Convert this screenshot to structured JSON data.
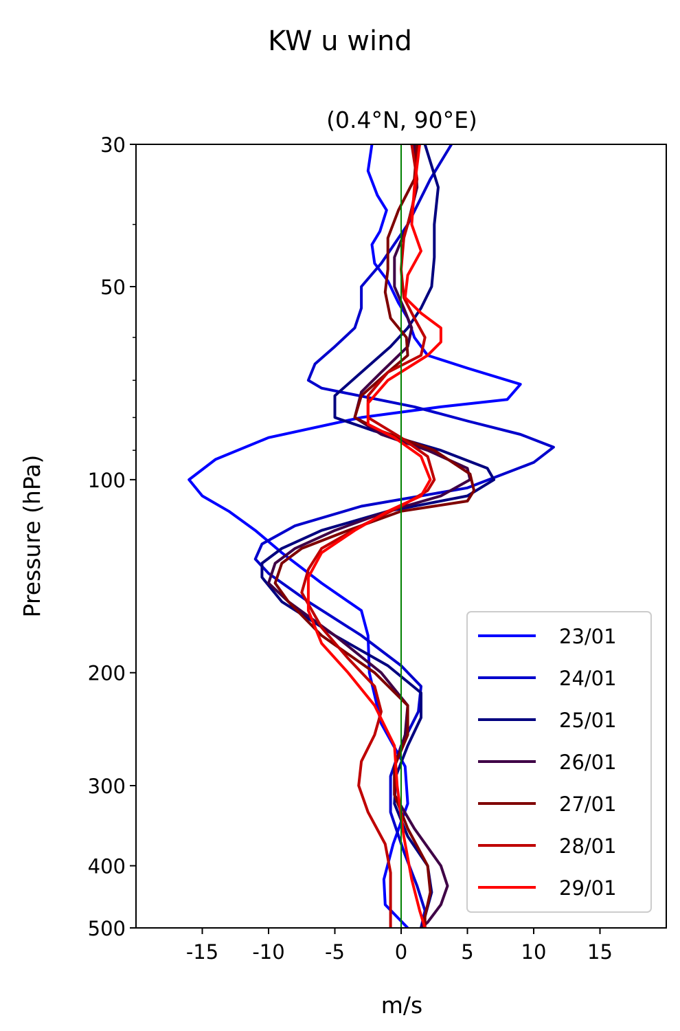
{
  "chart_data": {
    "type": "line",
    "title": "KW u wind",
    "subtitle": "(0.4°N, 90°E)",
    "xlabel": "m/s",
    "ylabel": "Pressure (hPa)",
    "xlim": [
      -20,
      20
    ],
    "ylim": [
      500,
      30
    ],
    "y_scale": "log",
    "y_inverted": true,
    "grid": false,
    "legend_position": "lower-right",
    "x_ticks": [
      -15,
      -10,
      -5,
      0,
      5,
      10,
      15
    ],
    "x_tick_labels": [
      "-15",
      "-10",
      "-5",
      "0",
      "5",
      "10",
      "15"
    ],
    "y_ticks": [
      30,
      50,
      100,
      200,
      300,
      400,
      500
    ],
    "y_tick_labels": [
      "30",
      "50",
      "100",
      "200",
      "300",
      "400",
      "500"
    ],
    "y_minor_ticks": [
      40,
      60,
      70,
      80,
      90
    ],
    "reference_line": {
      "x": 0,
      "color": "#008000"
    },
    "series": [
      {
        "name": "23/01",
        "color": "#0000ff",
        "points": [
          [
            -2.2,
            30
          ],
          [
            -2.5,
            33
          ],
          [
            -1.8,
            36
          ],
          [
            -1.1,
            38
          ],
          [
            -1.6,
            41
          ],
          [
            -2.2,
            43
          ],
          [
            -2.0,
            46
          ],
          [
            -1.0,
            49
          ],
          [
            -0.2,
            53
          ],
          [
            0.5,
            56
          ],
          [
            1.0,
            60
          ],
          [
            2.0,
            64
          ],
          [
            5,
            67
          ],
          [
            9,
            71
          ],
          [
            8,
            75
          ],
          [
            3,
            77
          ],
          [
            -3,
            80
          ],
          [
            -10,
            86
          ],
          [
            -14,
            93
          ],
          [
            -16,
            100
          ],
          [
            -15,
            106
          ],
          [
            -13,
            112
          ],
          [
            -11,
            120
          ],
          [
            -9,
            130
          ],
          [
            -6,
            145
          ],
          [
            -3,
            160
          ],
          [
            -2.5,
            175
          ],
          [
            -2.4,
            200
          ],
          [
            -1.5,
            240
          ],
          [
            0.3,
            280
          ],
          [
            0.5,
            320
          ],
          [
            -0.6,
            370
          ],
          [
            -1.3,
            420
          ],
          [
            -1.2,
            460
          ],
          [
            0.5,
            500
          ]
        ]
      },
      {
        "name": "24/01",
        "color": "#0000cc",
        "points": [
          [
            3.8,
            30
          ],
          [
            2.2,
            34
          ],
          [
            0.5,
            40
          ],
          [
            -1.5,
            46
          ],
          [
            -3,
            50
          ],
          [
            -3,
            54
          ],
          [
            -3.5,
            58
          ],
          [
            -5,
            62
          ],
          [
            -6.5,
            66
          ],
          [
            -7,
            70
          ],
          [
            -6,
            72
          ],
          [
            1,
            77
          ],
          [
            5,
            81
          ],
          [
            9,
            85
          ],
          [
            11.5,
            89
          ],
          [
            10,
            94
          ],
          [
            5,
            103
          ],
          [
            -3,
            110
          ],
          [
            -8,
            118
          ],
          [
            -10.5,
            126
          ],
          [
            -11,
            133
          ],
          [
            -10,
            140
          ],
          [
            -7,
            155
          ],
          [
            -3,
            175
          ],
          [
            0,
            195
          ],
          [
            1.5,
            210
          ],
          [
            1.3,
            230
          ],
          [
            0,
            260
          ],
          [
            -0.8,
            290
          ],
          [
            -0.8,
            330
          ],
          [
            0.2,
            380
          ],
          [
            1.2,
            430
          ],
          [
            1.8,
            470
          ],
          [
            1.5,
            500
          ]
        ]
      },
      {
        "name": "25/01",
        "color": "#00007f",
        "points": [
          [
            1.8,
            30
          ],
          [
            2.8,
            35
          ],
          [
            2.5,
            40
          ],
          [
            2.5,
            45
          ],
          [
            2.3,
            50
          ],
          [
            1.5,
            54
          ],
          [
            0.5,
            58
          ],
          [
            -0.8,
            62
          ],
          [
            -3,
            68
          ],
          [
            -5,
            74
          ],
          [
            -5,
            80
          ],
          [
            -2,
            84
          ],
          [
            3,
            90
          ],
          [
            6.5,
            96
          ],
          [
            7,
            100
          ],
          [
            5,
            106
          ],
          [
            -1,
            112
          ],
          [
            -6,
            120
          ],
          [
            -9,
            128
          ],
          [
            -10.5,
            135
          ],
          [
            -10.5,
            142
          ],
          [
            -9,
            155
          ],
          [
            -5,
            175
          ],
          [
            -1,
            195
          ],
          [
            1.5,
            215
          ],
          [
            1.5,
            235
          ],
          [
            0.5,
            260
          ],
          [
            -0.4,
            290
          ],
          [
            -0.5,
            320
          ],
          [
            0.5,
            360
          ],
          [
            2,
            400
          ],
          [
            2.3,
            440
          ],
          [
            1.8,
            480
          ],
          [
            1.5,
            500
          ]
        ]
      },
      {
        "name": "26/01",
        "color": "#3f0046",
        "points": [
          [
            1.0,
            30
          ],
          [
            1.2,
            35
          ],
          [
            0.5,
            40
          ],
          [
            -0.5,
            45
          ],
          [
            -0.5,
            50
          ],
          [
            0.2,
            54
          ],
          [
            0.8,
            58
          ],
          [
            0.5,
            62
          ],
          [
            -1.5,
            68
          ],
          [
            -3,
            73
          ],
          [
            -3.5,
            80
          ],
          [
            -1.5,
            85
          ],
          [
            2,
            90
          ],
          [
            5,
            96
          ],
          [
            5.2,
            100
          ],
          [
            3,
            106
          ],
          [
            -1,
            112
          ],
          [
            -5,
            120
          ],
          [
            -8,
            128
          ],
          [
            -9.5,
            135
          ],
          [
            -10,
            145
          ],
          [
            -8.5,
            155
          ],
          [
            -5,
            175
          ],
          [
            -1.5,
            200
          ],
          [
            0.5,
            225
          ],
          [
            0.3,
            250
          ],
          [
            -0.5,
            280
          ],
          [
            -0.5,
            310
          ],
          [
            1,
            350
          ],
          [
            3,
            400
          ],
          [
            3.5,
            430
          ],
          [
            3,
            460
          ],
          [
            2,
            490
          ],
          [
            1.5,
            500
          ]
        ]
      },
      {
        "name": "27/01",
        "color": "#7f0000",
        "points": [
          [
            1.2,
            30
          ],
          [
            1.0,
            34
          ],
          [
            -0.2,
            38
          ],
          [
            -1,
            42
          ],
          [
            -1,
            47
          ],
          [
            -1.2,
            51
          ],
          [
            -0.8,
            56
          ],
          [
            0.4,
            60
          ],
          [
            0.5,
            64
          ],
          [
            -1,
            68
          ],
          [
            -3,
            74
          ],
          [
            -3.5,
            80
          ],
          [
            -1.5,
            84
          ],
          [
            2.5,
            90
          ],
          [
            5.2,
            98
          ],
          [
            5.5,
            104
          ],
          [
            5,
            108
          ],
          [
            0,
            112
          ],
          [
            -4,
            120
          ],
          [
            -7.5,
            128
          ],
          [
            -9,
            135
          ],
          [
            -9.5,
            145
          ],
          [
            -8.5,
            155
          ],
          [
            -6,
            175
          ],
          [
            -2,
            200
          ],
          [
            0.5,
            225
          ],
          [
            0.5,
            250
          ],
          [
            -0.5,
            280
          ],
          [
            -0.5,
            310
          ],
          [
            0.5,
            350
          ],
          [
            2,
            400
          ],
          [
            2.2,
            440
          ],
          [
            1.8,
            480
          ],
          [
            1.8,
            500
          ]
        ]
      },
      {
        "name": "28/01",
        "color": "#bf0000",
        "points": [
          [
            0.8,
            30
          ],
          [
            1.2,
            34
          ],
          [
            0.8,
            38
          ],
          [
            0.2,
            42
          ],
          [
            0,
            47
          ],
          [
            0.2,
            52
          ],
          [
            1.0,
            56
          ],
          [
            1.8,
            60
          ],
          [
            1.5,
            64
          ],
          [
            -1,
            68
          ],
          [
            -2.5,
            74
          ],
          [
            -2.5,
            80
          ],
          [
            0,
            86
          ],
          [
            2,
            92
          ],
          [
            2.5,
            100
          ],
          [
            2,
            104
          ],
          [
            0,
            110
          ],
          [
            -3,
            118
          ],
          [
            -6,
            128
          ],
          [
            -7,
            138
          ],
          [
            -7.5,
            150
          ],
          [
            -6,
            170
          ],
          [
            -4,
            190
          ],
          [
            -2,
            210
          ],
          [
            -1.5,
            230
          ],
          [
            -2,
            250
          ],
          [
            -3,
            275
          ],
          [
            -3.2,
            300
          ],
          [
            -2.5,
            330
          ],
          [
            -1.2,
            370
          ],
          [
            -0.8,
            410
          ],
          [
            -0.8,
            460
          ],
          [
            -0.8,
            500
          ]
        ]
      },
      {
        "name": "29/01",
        "color": "#ff0000",
        "points": [
          [
            1.4,
            30
          ],
          [
            1.0,
            35
          ],
          [
            0.8,
            40
          ],
          [
            1.5,
            44
          ],
          [
            0.5,
            48
          ],
          [
            0.3,
            52
          ],
          [
            1.5,
            55
          ],
          [
            3,
            58
          ],
          [
            3,
            61
          ],
          [
            2,
            64
          ],
          [
            -1,
            70
          ],
          [
            -2.5,
            76
          ],
          [
            -2.5,
            82
          ],
          [
            -0.5,
            86
          ],
          [
            1.5,
            92
          ],
          [
            2.2,
            100
          ],
          [
            1.5,
            106
          ],
          [
            -1,
            112
          ],
          [
            -3.5,
            120
          ],
          [
            -6,
            130
          ],
          [
            -7,
            142
          ],
          [
            -7,
            160
          ],
          [
            -6,
            180
          ],
          [
            -4,
            200
          ],
          [
            -2,
            225
          ],
          [
            -0.5,
            260
          ],
          [
            -0.3,
            300
          ],
          [
            0.2,
            360
          ],
          [
            0.8,
            420
          ],
          [
            1.4,
            470
          ],
          [
            1.8,
            500
          ]
        ]
      }
    ]
  }
}
